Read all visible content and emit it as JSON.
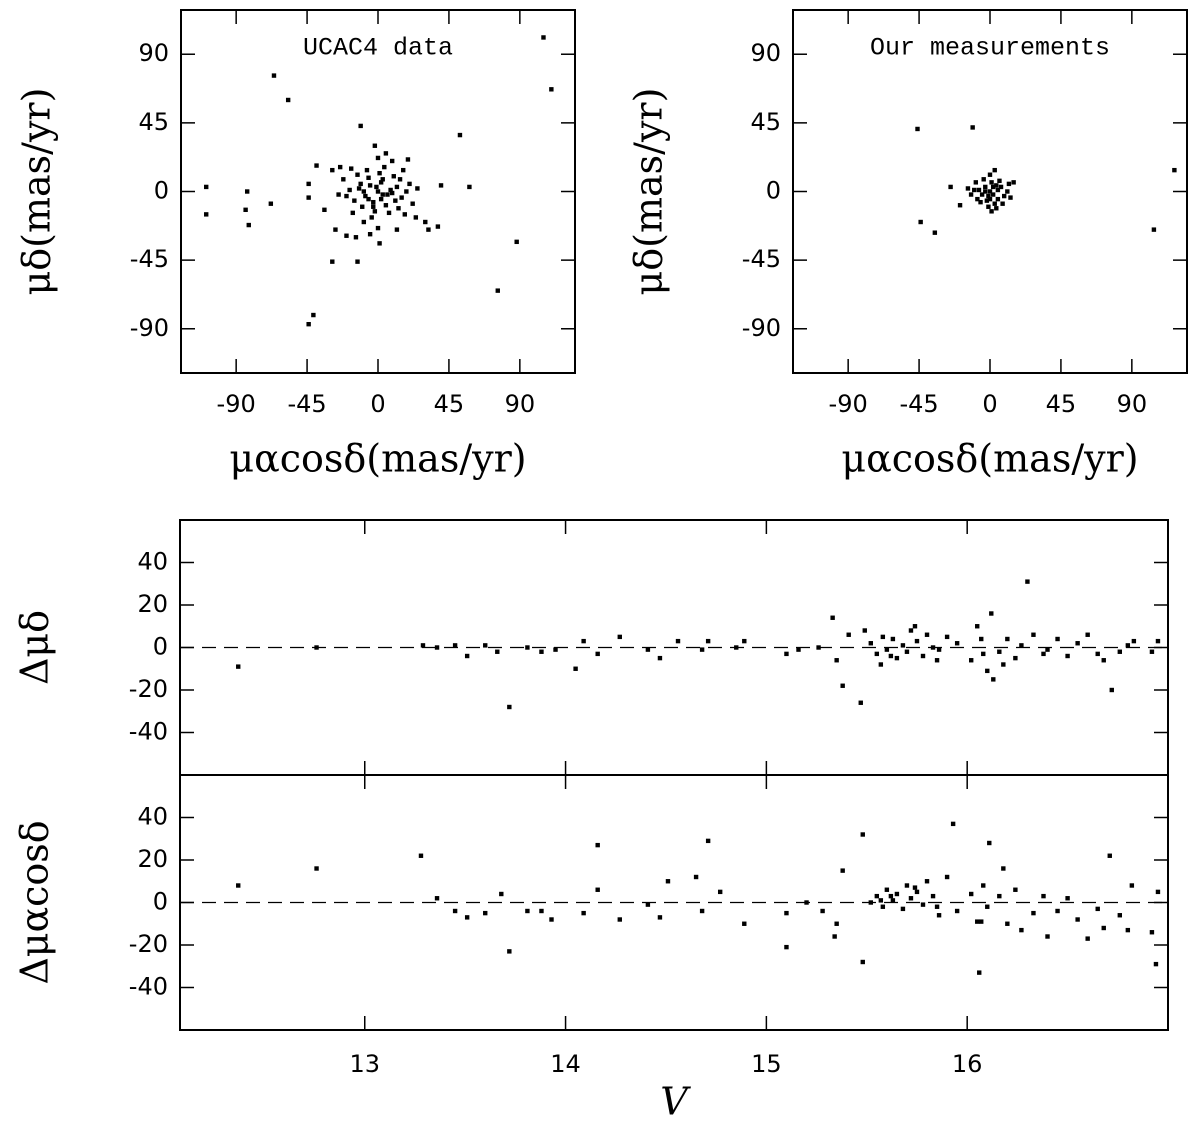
{
  "chart_data": [
    {
      "type": "scatter",
      "title": "UCAC4 data",
      "x_label": "μαcosδ(mas/yr)",
      "y_label": "μδ(mas/yr)",
      "color": "#000000",
      "xlim": [
        -125,
        125
      ],
      "ylim": [
        -119,
        119
      ],
      "xticks": [
        -90,
        -45,
        0,
        45,
        90
      ],
      "yticks": [
        -90,
        -45,
        0,
        45,
        90
      ],
      "x": [
        -109,
        -109,
        -83,
        -84,
        -82,
        -68,
        -66,
        -57,
        -11,
        -44,
        -44,
        -39,
        -29,
        -41,
        -44,
        -13,
        -20,
        32,
        38,
        40,
        52,
        58,
        76,
        88,
        105,
        110,
        0,
        3,
        -5,
        8,
        -8,
        2,
        -3,
        12,
        -12,
        5,
        -6,
        15,
        -15,
        1,
        -2,
        10,
        -10,
        18,
        -18,
        7,
        -7,
        20,
        -20,
        4,
        -4,
        13,
        -13,
        22,
        -22,
        9,
        -9,
        25,
        -25,
        0,
        0,
        16,
        -16,
        6,
        -1,
        3,
        -6,
        11,
        -11,
        14,
        -3,
        2,
        -9,
        9,
        17,
        -17,
        -24,
        24,
        -29,
        30,
        5,
        -14,
        -27,
        19,
        -2,
        1,
        -34,
        12,
        -5
      ],
      "values": [
        3,
        -15,
        0,
        -12,
        -22,
        -8,
        76,
        60,
        43,
        5,
        -4,
        17,
        -46,
        -81,
        -87,
        -46,
        -29,
        -25,
        -23,
        4,
        37,
        3,
        -65,
        -33,
        101,
        67,
        0,
        -2,
        4,
        1,
        -3,
        6,
        -7,
        3,
        2,
        -9,
        9,
        -4,
        -6,
        12,
        -13,
        10,
        -10,
        0,
        1,
        -14,
        14,
        5,
        -3,
        16,
        -17,
        -11,
        11,
        -8,
        8,
        20,
        -20,
        2,
        -2,
        22,
        -24,
        14,
        -14,
        -2,
        3,
        8,
        -5,
        -6,
        5,
        8,
        -10,
        -5,
        0,
        -1,
        -15,
        15,
        16,
        -17,
        14,
        -20,
        25,
        -30,
        -25,
        21,
        30,
        -34,
        -12,
        -25,
        -28
      ]
    },
    {
      "type": "scatter",
      "title": "Our measurements",
      "x_label": "μαcosδ(mas/yr)",
      "y_label": "μδ(mas/yr)",
      "color": "#000000",
      "xlim": [
        -125,
        125
      ],
      "ylim": [
        -119,
        119
      ],
      "xticks": [
        -90,
        -45,
        0,
        45,
        90
      ],
      "yticks": [
        -90,
        -45,
        0,
        45,
        90
      ],
      "x": [
        -46,
        -44,
        -35,
        -11,
        -25,
        104,
        117,
        -19,
        0,
        2,
        -3,
        5,
        -5,
        1,
        -2,
        7,
        -7,
        3,
        -4,
        9,
        -8,
        0,
        -1,
        6,
        -6,
        11,
        -10,
        4,
        3,
        12,
        -12,
        1,
        8,
        -9,
        13,
        2,
        -1,
        4,
        0,
        -3,
        5,
        15,
        -14
      ],
      "values": [
        41,
        -20,
        -27,
        42,
        3,
        -25,
        14,
        -9,
        0,
        -2,
        3,
        1,
        -2,
        6,
        -6,
        3,
        1,
        -8,
        8,
        -3,
        -5,
        11,
        -10,
        7,
        -7,
        0,
        1,
        -11,
        14,
        5,
        -2,
        -13,
        -8,
        6,
        -4,
        3,
        -3,
        4,
        -5,
        0,
        -5,
        6,
        2
      ]
    },
    {
      "type": "scatter",
      "y_label": "Δμδ",
      "color": "#000000",
      "reference_line": 0,
      "xtick_labels": false,
      "xlim": [
        12.08,
        17.0
      ],
      "ylim": [
        -60,
        60
      ],
      "xticks": [
        13,
        14,
        15,
        16
      ],
      "yticks": [
        -40,
        -20,
        0,
        20,
        40
      ],
      "x": [
        12.37,
        12.76,
        13.29,
        13.36,
        13.45,
        13.51,
        13.6,
        13.66,
        13.72,
        13.81,
        13.88,
        13.95,
        14.05,
        14.09,
        14.16,
        14.27,
        14.41,
        14.47,
        14.56,
        14.68,
        14.71,
        14.85,
        14.89,
        15.1,
        15.16,
        15.26,
        15.33,
        15.38,
        15.41,
        15.47,
        15.49,
        16.3,
        16.72,
        16.12,
        16.13,
        16.83,
        15.52,
        15.55,
        15.58,
        15.6,
        15.63,
        15.65,
        15.68,
        15.7,
        15.72,
        15.75,
        15.78,
        15.8,
        15.83,
        15.86,
        15.9,
        15.95,
        16.02,
        16.05,
        16.08,
        16.1,
        16.16,
        16.2,
        16.24,
        16.27,
        16.33,
        16.38,
        16.4,
        16.45,
        16.5,
        16.55,
        16.6,
        16.65,
        16.68,
        16.76,
        16.8,
        16.95,
        15.57,
        15.62,
        15.74,
        15.85,
        16.07,
        16.18,
        15.35,
        16.92
      ],
      "values": [
        -9,
        0,
        1,
        0,
        1,
        -4,
        1,
        -2,
        -28,
        0,
        -2,
        -1,
        -10,
        3,
        -3,
        5,
        -1,
        -5,
        3,
        -1,
        3,
        0,
        3,
        -3,
        -1,
        0,
        14,
        -18,
        6,
        -26,
        8,
        31,
        -20,
        16,
        -15,
        3,
        2,
        -3,
        5,
        -1,
        4,
        -5,
        1,
        -2,
        8,
        3,
        -4,
        6,
        0,
        -1,
        5,
        2,
        -6,
        10,
        -3,
        -11,
        -2,
        4,
        -5,
        1,
        6,
        -3,
        -1,
        4,
        -4,
        2,
        6,
        -3,
        -6,
        -2,
        1,
        3,
        -8,
        -4,
        10,
        -6,
        4,
        -8,
        -6,
        -2
      ]
    },
    {
      "type": "scatter",
      "x_label": "V",
      "y_label": "Δμαcosδ",
      "color": "#000000",
      "reference_line": 0,
      "xtick_labels": true,
      "xlim": [
        12.08,
        17.0
      ],
      "ylim": [
        -60,
        60
      ],
      "xticks": [
        13,
        14,
        15,
        16
      ],
      "yticks": [
        -40,
        -20,
        0,
        20,
        40
      ],
      "x": [
        12.37,
        12.76,
        13.28,
        13.36,
        13.45,
        13.51,
        13.6,
        13.68,
        13.72,
        13.81,
        13.88,
        13.93,
        14.09,
        14.16,
        14.16,
        14.27,
        14.41,
        14.47,
        14.51,
        14.65,
        14.71,
        14.68,
        14.77,
        14.89,
        15.1,
        15.1,
        15.2,
        15.28,
        15.34,
        15.38,
        15.48,
        15.48,
        15.93,
        16.06,
        16.11,
        16.71,
        16.94,
        16.82,
        15.52,
        15.55,
        15.58,
        15.6,
        15.63,
        15.65,
        15.68,
        15.7,
        15.72,
        15.75,
        15.78,
        15.8,
        15.83,
        15.86,
        15.9,
        15.95,
        16.02,
        16.05,
        16.08,
        16.1,
        16.16,
        16.2,
        16.24,
        16.27,
        16.33,
        16.38,
        16.4,
        16.45,
        16.5,
        16.55,
        16.6,
        16.65,
        16.68,
        16.76,
        16.8,
        16.95,
        15.57,
        15.62,
        15.74,
        15.85,
        16.07,
        16.18,
        15.35,
        16.92
      ],
      "values": [
        8,
        16,
        22,
        2,
        -4,
        -7,
        -5,
        4,
        -23,
        -4,
        -4,
        -8,
        -5,
        27,
        6,
        -8,
        -1,
        -7,
        10,
        12,
        29,
        -4,
        5,
        -10,
        -21,
        -5,
        0,
        -4,
        -16,
        15,
        32,
        -28,
        37,
        -33,
        28,
        22,
        -29,
        8,
        0,
        3,
        -2,
        6,
        1,
        4,
        -3,
        8,
        2,
        5,
        -1,
        10,
        3,
        -6,
        12,
        -4,
        4,
        -9,
        8,
        -2,
        3,
        -10,
        6,
        -13,
        -5,
        3,
        -16,
        -4,
        2,
        -8,
        -17,
        -3,
        -12,
        -6,
        -13,
        5,
        1,
        3,
        7,
        -2,
        -9,
        16,
        -10,
        -14
      ]
    }
  ]
}
